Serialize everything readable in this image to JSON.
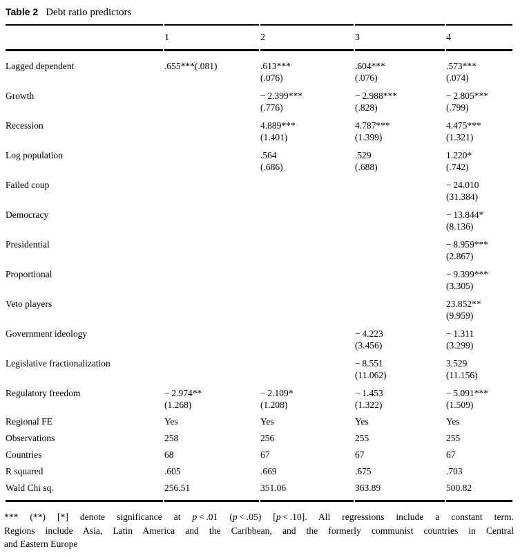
{
  "title": {
    "label": "Table 2",
    "caption": "Debt ratio predictors"
  },
  "columns": [
    "1",
    "2",
    "3",
    "4"
  ],
  "chart_data": {
    "type": "table",
    "note": "regression table; cells are estimate and (standard error)"
  },
  "table": {
    "rows": [
      {
        "label": "Lagged dependent",
        "kind": "coef",
        "cells": [
          {
            "est": ".655***(.081)",
            "se": ""
          },
          {
            "est": ".613***",
            "se": "(.076)"
          },
          {
            "est": ".604***",
            "se": "(.076)"
          },
          {
            "est": ".573***",
            "se": "(.074)"
          }
        ]
      },
      {
        "label": "Growth",
        "kind": "coef",
        "cells": [
          {
            "est": "",
            "se": ""
          },
          {
            "est": "− 2.399***",
            "se": "(.776)"
          },
          {
            "est": "− 2.988***",
            "se": "(.828)"
          },
          {
            "est": "− 2.805***",
            "se": "(.799)"
          }
        ]
      },
      {
        "label": "Recession",
        "kind": "coef",
        "cells": [
          {
            "est": "",
            "se": ""
          },
          {
            "est": "4.889***",
            "se": "(1.401)"
          },
          {
            "est": "4.787***",
            "se": "(1.399)"
          },
          {
            "est": "4.475***",
            "se": "(1.321)"
          }
        ]
      },
      {
        "label": "Log population",
        "kind": "coef",
        "cells": [
          {
            "est": "",
            "se": ""
          },
          {
            "est": ".564",
            "se": "(.686)"
          },
          {
            "est": ".529",
            "se": "(.688)"
          },
          {
            "est": "1.220*",
            "se": "(.742)"
          }
        ]
      },
      {
        "label": "Failed coup",
        "kind": "coef",
        "cells": [
          {
            "est": "",
            "se": ""
          },
          {
            "est": "",
            "se": ""
          },
          {
            "est": "",
            "se": ""
          },
          {
            "est": "− 24.010",
            "se": "(31.384)"
          }
        ]
      },
      {
        "label": "Democracy",
        "kind": "coef",
        "cells": [
          {
            "est": "",
            "se": ""
          },
          {
            "est": "",
            "se": ""
          },
          {
            "est": "",
            "se": ""
          },
          {
            "est": "− 13.844*",
            "se": "(8.136)"
          }
        ]
      },
      {
        "label": "Presidential",
        "kind": "coef",
        "cells": [
          {
            "est": "",
            "se": ""
          },
          {
            "est": "",
            "se": ""
          },
          {
            "est": "",
            "se": ""
          },
          {
            "est": "− 8.959***",
            "se": "(2.867)"
          }
        ]
      },
      {
        "label": "Proportional",
        "kind": "coef",
        "cells": [
          {
            "est": "",
            "se": ""
          },
          {
            "est": "",
            "se": ""
          },
          {
            "est": "",
            "se": ""
          },
          {
            "est": "− 9.399***",
            "se": "(3.305)"
          }
        ]
      },
      {
        "label": "Veto players",
        "kind": "coef",
        "cells": [
          {
            "est": "",
            "se": ""
          },
          {
            "est": "",
            "se": ""
          },
          {
            "est": "",
            "se": ""
          },
          {
            "est": "23.852**",
            "se": "(9.959)"
          }
        ]
      },
      {
        "label": "Government ideology",
        "kind": "coef",
        "cells": [
          {
            "est": "",
            "se": ""
          },
          {
            "est": "",
            "se": ""
          },
          {
            "est": "− 4.223",
            "se": "(3.456)"
          },
          {
            "est": "− 1.311",
            "se": "(3.299)"
          }
        ]
      },
      {
        "label": "Legislative fractionalization",
        "kind": "coef",
        "cells": [
          {
            "est": "",
            "se": ""
          },
          {
            "est": "",
            "se": ""
          },
          {
            "est": "− 8.551",
            "se": "(11.062)"
          },
          {
            "est": "3.529",
            "se": "(11.156)"
          }
        ]
      },
      {
        "label": "Regulatory freedom",
        "kind": "coef",
        "cells": [
          {
            "est": "− 2.974**",
            "se": "(1.268)"
          },
          {
            "est": "− 2.109*",
            "se": "(1.208)"
          },
          {
            "est": "− 1.453",
            "se": "(1.322)"
          },
          {
            "est": "− 5.091***",
            "se": "(1.509)"
          }
        ]
      },
      {
        "label": "Regional FE",
        "kind": "stat",
        "cells": [
          {
            "est": "Yes",
            "se": ""
          },
          {
            "est": "Yes",
            "se": ""
          },
          {
            "est": "Yes",
            "se": ""
          },
          {
            "est": "Yes",
            "se": ""
          }
        ]
      },
      {
        "label": "Observations",
        "kind": "stat",
        "cells": [
          {
            "est": "258",
            "se": ""
          },
          {
            "est": "256",
            "se": ""
          },
          {
            "est": "255",
            "se": ""
          },
          {
            "est": "255",
            "se": ""
          }
        ]
      },
      {
        "label": "Countries",
        "kind": "stat",
        "cells": [
          {
            "est": "68",
            "se": ""
          },
          {
            "est": "67",
            "se": ""
          },
          {
            "est": "67",
            "se": ""
          },
          {
            "est": "67",
            "se": ""
          }
        ]
      },
      {
        "label": "R squared",
        "kind": "stat",
        "cells": [
          {
            "est": ".605",
            "se": ""
          },
          {
            "est": ".669",
            "se": ""
          },
          {
            "est": ".675",
            "se": ""
          },
          {
            "est": ".703",
            "se": ""
          }
        ]
      },
      {
        "label": "Wald Chi sq.",
        "kind": "stat",
        "cells": [
          {
            "est": "256.51",
            "se": ""
          },
          {
            "est": "351.06",
            "se": ""
          },
          {
            "est": "363.89",
            "se": ""
          },
          {
            "est": "500.82",
            "se": ""
          }
        ]
      }
    ]
  },
  "footnote": {
    "lines": [
      {
        "just": true,
        "segments": [
          {
            "t": "*** (**) [*] denote significance at "
          },
          {
            "t": "p",
            "i": true
          },
          {
            "t": " < .01 ("
          },
          {
            "t": "p",
            "i": true
          },
          {
            "t": " < .05) ["
          },
          {
            "t": "p",
            "i": true
          },
          {
            "t": " < .10]. All regressions include a constant term."
          }
        ]
      },
      {
        "just": true,
        "segments": [
          {
            "t": "Regions include Asia, Latin America and the Caribbean, and the formerly communist countries in Central"
          }
        ]
      },
      {
        "just": false,
        "segments": [
          {
            "t": "and Eastern Europe"
          }
        ]
      }
    ]
  }
}
